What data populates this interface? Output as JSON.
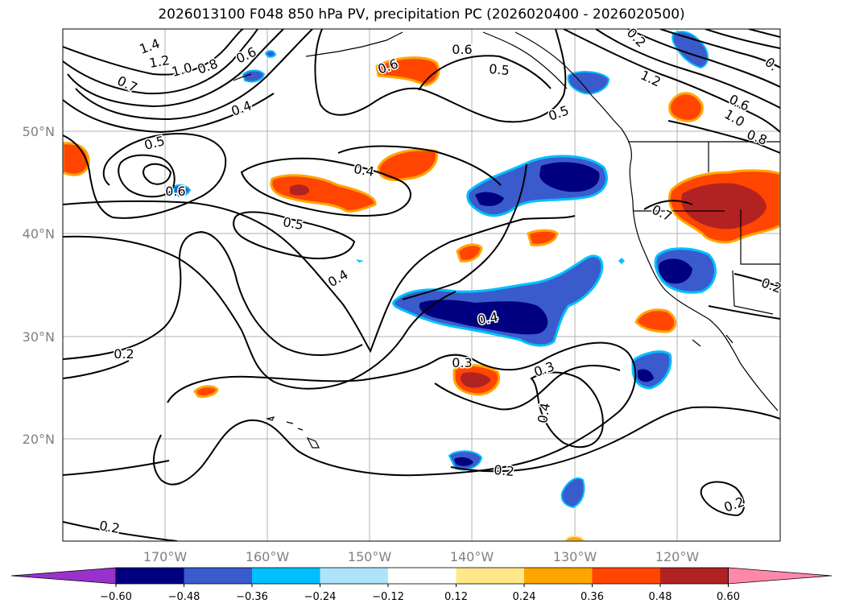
{
  "title": "2026013100 F048 850 hPa PV, precipitation PC (2026020400 - 2026020500)",
  "lat_ticks": [
    "50°N",
    "40°N",
    "30°N",
    "20°N"
  ],
  "lon_ticks": [
    "170°W",
    "160°W",
    "150°W",
    "140°W",
    "130°W",
    "120°W"
  ],
  "contour_labels": [
    "1.4",
    "1.2",
    "1.0",
    "0.8",
    "0.6",
    "0.7",
    "0.4",
    "0.6",
    "0.5",
    "0.6",
    "0.5",
    "0.5",
    "0.6",
    "0.4",
    "0.5",
    "0.4",
    "0.4",
    "0.2",
    "0.3",
    "0.3",
    "0.4",
    "0.2",
    "0.2",
    "0.2",
    "0.2",
    "1.2",
    "0.6",
    "1.0",
    "0.8",
    "0.7",
    "0.2",
    "0.",
    "1"
  ],
  "colorbar": {
    "colors": [
      "#9932cc",
      "#000080",
      "#3a5bcc",
      "#00bfff",
      "#aee4fa",
      "#ffffff",
      "#ffe88a",
      "#ffa500",
      "#ff4500",
      "#b22222",
      "#ff88aa"
    ],
    "labels": [
      "−0.60",
      "−0.48",
      "−0.36",
      "−0.24",
      "−0.12",
      "0.12",
      "0.24",
      "0.36",
      "0.48",
      "0.60"
    ]
  }
}
